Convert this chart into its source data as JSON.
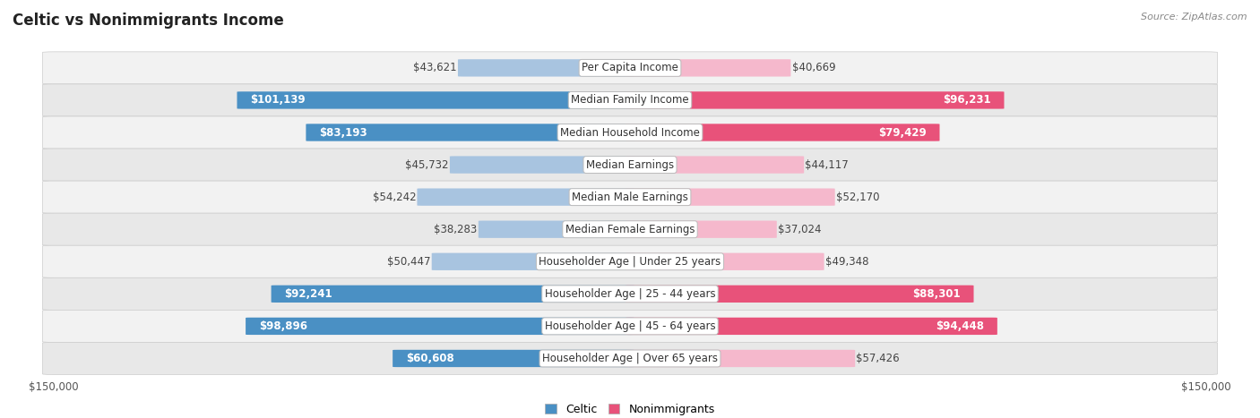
{
  "title": "Celtic vs Nonimmigrants Income",
  "source": "Source: ZipAtlas.com",
  "categories": [
    "Per Capita Income",
    "Median Family Income",
    "Median Household Income",
    "Median Earnings",
    "Median Male Earnings",
    "Median Female Earnings",
    "Householder Age | Under 25 years",
    "Householder Age | 25 - 44 years",
    "Householder Age | 45 - 64 years",
    "Householder Age | Over 65 years"
  ],
  "celtic_values": [
    43621,
    101139,
    83193,
    45732,
    54242,
    38283,
    50447,
    92241,
    98896,
    60608
  ],
  "nonimmigrant_values": [
    40669,
    96231,
    79429,
    44117,
    52170,
    37024,
    49348,
    88301,
    94448,
    57426
  ],
  "celtic_labels": [
    "$43,621",
    "$101,139",
    "$83,193",
    "$45,732",
    "$54,242",
    "$38,283",
    "$50,447",
    "$92,241",
    "$98,896",
    "$60,608"
  ],
  "nonimmigrant_labels": [
    "$40,669",
    "$96,231",
    "$79,429",
    "$44,117",
    "$52,170",
    "$37,024",
    "$49,348",
    "$88,301",
    "$94,448",
    "$57,426"
  ],
  "celtic_color_light": "#a8c4e0",
  "celtic_color_dark": "#4a90c4",
  "nonimmigrant_color_light": "#f5b8cc",
  "nonimmigrant_color_dark": "#e8527a",
  "white_label_threshold": 60000,
  "bar_height": 0.52,
  "xlim": 150000,
  "row_bg_light": "#f2f2f2",
  "row_bg_dark": "#e8e8e8",
  "title_fontsize": 12,
  "label_fontsize": 8.5,
  "tick_fontsize": 8.5,
  "source_fontsize": 8,
  "legend_fontsize": 9
}
